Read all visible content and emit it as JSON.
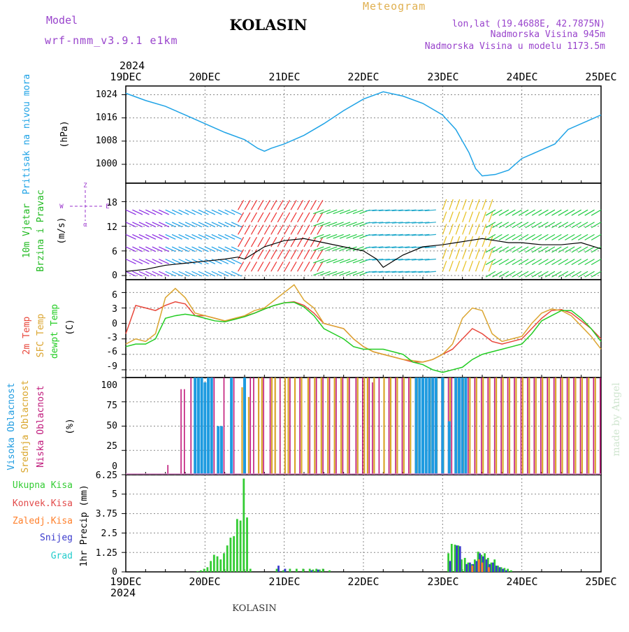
{
  "header": {
    "model_label": "Model",
    "model_name": "wrf-nmm_v3.9.1 e1km",
    "year_top": "2024",
    "title": "KOLASIN",
    "meteogram": "Meteogram",
    "lonlat": "lon,lat (19.4688E, 42.7875N)",
    "elevation": "Nadmorska Visina 945m",
    "model_elevation": "Nadmorska Visina u modelu 1173.5m"
  },
  "footer": {
    "year": "2024",
    "station": "KOLASIN",
    "credit": "made by Angel"
  },
  "colors": {
    "pressure": "#1fa3e6",
    "wind_label": "#22bb22",
    "temp2m": "#e8473b",
    "sfc": "#dba530",
    "dew": "#22cc22",
    "high_cloud": "#1e9be0",
    "mid_cloud": "#d9a52a",
    "low_cloud": "#c0197b",
    "precip_total": "#33cc33",
    "precip_conv": "#e24a4a",
    "precip_freeze": "#ff7f2a",
    "snow": "#3a3acc",
    "graupel": "#22cccc",
    "wind_legend": "#9933cc",
    "header": "#9944cc",
    "meteogram": "#e0b050"
  },
  "chart_data": [
    {
      "type": "line",
      "title": "",
      "ylabel_1": "Pritisak na nivou mora",
      "ylabel_2": "(hPa)",
      "x_ticks": [
        "19DEC",
        "20DEC",
        "21DEC",
        "22DEC",
        "23DEC",
        "24DEC",
        "25DEC"
      ],
      "y_ticks": [
        1000,
        1008,
        1016,
        1024
      ],
      "ylim": [
        993.5,
        1027
      ],
      "x": [
        0,
        6,
        12,
        18,
        24,
        30,
        36,
        40,
        42,
        44,
        48,
        54,
        60,
        66,
        72,
        78,
        84,
        90,
        96,
        100,
        104,
        106,
        108,
        112,
        116,
        120,
        124,
        126,
        130,
        134,
        140,
        144
      ],
      "series": [
        {
          "values": [
            1024.5,
            1022,
            1020,
            1017,
            1014,
            1011,
            1008.5,
            1005.5,
            1004.5,
            1005.5,
            1007,
            1010,
            1014,
            1018.5,
            1022.5,
            1025,
            1023.5,
            1021,
            1017,
            1012,
            1004,
            998.5,
            996,
            996.5,
            998,
            1002,
            1004,
            1005,
            1007,
            1012,
            1015,
            1017
          ]
        }
      ]
    },
    {
      "type": "line",
      "title": "",
      "ylabel_1": "10m Vjetar",
      "ylabel_2": "Brzina i Pravac",
      "ylabel_3": "(m/s)",
      "legend_compass": {
        "n": "Z",
        "w": "W",
        "e": "E",
        "s": "α"
      },
      "y_ticks": [
        0,
        6,
        12,
        18
      ],
      "ylim": [
        -1,
        22.5
      ],
      "x": [
        0,
        6,
        12,
        18,
        24,
        30,
        34,
        36,
        38,
        40,
        42,
        48,
        54,
        60,
        66,
        72,
        76,
        78,
        80,
        84,
        90,
        96,
        100,
        104,
        108,
        112,
        116,
        120,
        126,
        132,
        138,
        144
      ],
      "series": [
        {
          "name": "speed",
          "values": [
            1,
            1.5,
            2.5,
            3,
            3.5,
            4,
            4.5,
            4,
            5,
            6,
            7,
            8.5,
            9,
            8,
            7,
            6,
            4,
            2,
            3,
            5,
            7,
            7.5,
            8,
            8.5,
            9,
            8.5,
            8,
            8,
            7.5,
            7.5,
            8,
            6.5
          ]
        }
      ]
    },
    {
      "type": "line",
      "title": "",
      "ylabel_1": "2m Temp",
      "ylabel_2": "SFC Temp",
      "ylabel_3": "dewpt Temp",
      "ylabel_4": "(C)",
      "y_ticks": [
        -9,
        -6,
        -3,
        0,
        3,
        6
      ],
      "ylim": [
        -10.5,
        8.5
      ],
      "x": [
        0,
        3,
        6,
        9,
        12,
        15,
        18,
        21,
        24,
        27,
        30,
        33,
        36,
        39,
        42,
        45,
        48,
        51,
        54,
        57,
        60,
        63,
        66,
        69,
        72,
        75,
        78,
        81,
        84,
        87,
        90,
        93,
        96,
        99,
        102,
        105,
        108,
        111,
        114,
        117,
        120,
        123,
        126,
        129,
        132,
        135,
        138,
        141,
        144
      ],
      "series": [
        {
          "name": "2m Temp",
          "values": [
            -2,
            3.5,
            3,
            2.5,
            3.5,
            4.2,
            3.8,
            1.5,
            1.5,
            1,
            0.5,
            0.8,
            1.4,
            2,
            2.8,
            3.5,
            4,
            4.2,
            3.5,
            2,
            0,
            -0.5,
            -1,
            -3,
            -4.5,
            -5.5,
            -6,
            -6.5,
            -7,
            -7.5,
            -7.5,
            -7,
            -6,
            -5,
            -3,
            -1,
            -2,
            -3.5,
            -4,
            -3.5,
            -3,
            -1,
            1,
            2.5,
            2.7,
            2,
            0.5,
            -1,
            -3
          ]
        },
        {
          "name": "SFC Temp",
          "values": [
            -4,
            -3,
            -3.5,
            -2,
            5,
            6.8,
            5,
            2,
            1.5,
            1,
            0.5,
            1,
            1.5,
            2.5,
            3,
            4.5,
            6,
            7.5,
            4.5,
            3,
            0,
            -0.5,
            -1,
            -3,
            -4.5,
            -5.5,
            -6,
            -6.5,
            -7,
            -7.2,
            -7.5,
            -7,
            -6,
            -4,
            1,
            3,
            2.5,
            -2,
            -3.5,
            -3,
            -2.5,
            0,
            2,
            2.8,
            2.5,
            1.5,
            -0.5,
            -2.5,
            -5
          ]
        },
        {
          "name": "dewpt Temp",
          "values": [
            -4.5,
            -4,
            -4,
            -3,
            1,
            1.5,
            1.8,
            1.5,
            1,
            0.5,
            0.3,
            0.8,
            1.3,
            2,
            2.8,
            3.5,
            4,
            4.1,
            3.2,
            1.5,
            -1,
            -2,
            -3,
            -4.5,
            -5,
            -5,
            -5,
            -5.5,
            -6,
            -7.5,
            -8,
            -9,
            -9.5,
            -9,
            -8.5,
            -7,
            -6,
            -5.5,
            -5,
            -4.5,
            -4,
            -2,
            0.5,
            1.5,
            2.5,
            2.5,
            1,
            -1,
            -3.5
          ]
        }
      ]
    },
    {
      "type": "bar",
      "title": "",
      "ylabel_1": "Visoka Oblacnost",
      "ylabel_2": "Srednja Oblacnost",
      "ylabel_3": "Niska Oblacnost",
      "ylabel_4": "(%)",
      "y_ticks": [
        0,
        25,
        50,
        75,
        100
      ],
      "ylim": [
        0,
        100
      ],
      "series": [
        {
          "name": "Visoka Oblacnost",
          "x": [
            21,
            22,
            23,
            24,
            25,
            26,
            28,
            29,
            32,
            36,
            88,
            89,
            90,
            91,
            92,
            93,
            94,
            96,
            98,
            100,
            101,
            102,
            103
          ],
          "values": [
            100,
            100,
            100,
            95,
            100,
            100,
            50,
            50,
            100,
            100,
            100,
            100,
            100,
            100,
            100,
            100,
            100,
            100,
            55,
            100,
            100,
            100,
            100
          ]
        },
        {
          "name": "Srednja Oblacnost",
          "x": [
            35,
            37,
            40,
            41,
            44,
            45,
            48,
            49,
            51,
            53,
            55,
            57,
            59,
            61,
            63,
            65,
            67,
            70,
            72,
            73,
            75,
            78,
            80,
            82,
            84,
            86,
            88,
            92,
            94,
            96,
            98,
            100,
            102,
            104,
            106,
            108,
            110,
            112,
            114,
            116,
            118,
            120,
            122,
            124,
            126,
            128,
            130,
            132,
            134,
            136,
            138,
            140,
            142
          ],
          "values": [
            90,
            80,
            100,
            100,
            100,
            100,
            100,
            100,
            100,
            100,
            100,
            100,
            100,
            100,
            100,
            100,
            100,
            100,
            100,
            100,
            100,
            100,
            100,
            100,
            100,
            100,
            100,
            100,
            100,
            100,
            100,
            100,
            100,
            100,
            100,
            100,
            100,
            100,
            100,
            100,
            100,
            100,
            100,
            100,
            100,
            100,
            100,
            100,
            100,
            100,
            100,
            100,
            100
          ]
        },
        {
          "name": "Niska Oblacnost",
          "x": [
            13,
            17,
            18,
            20,
            27,
            30,
            33,
            36,
            38,
            39,
            42,
            44,
            47,
            50,
            53,
            56,
            58,
            60,
            62,
            64,
            66,
            68,
            70,
            72,
            74,
            75,
            77,
            80,
            82,
            84,
            86,
            88,
            90,
            92,
            94,
            96,
            98,
            99,
            102,
            104,
            106,
            108,
            110,
            112,
            114,
            116,
            118,
            120,
            122,
            124,
            126,
            128,
            130,
            132,
            134,
            136,
            138,
            140,
            142,
            144
          ],
          "values": [
            10,
            88,
            88,
            100,
            100,
            100,
            100,
            100,
            100,
            100,
            100,
            100,
            100,
            100,
            100,
            100,
            100,
            100,
            100,
            100,
            100,
            100,
            100,
            100,
            100,
            95,
            100,
            100,
            100,
            100,
            100,
            100,
            100,
            100,
            100,
            100,
            100,
            100,
            100,
            100,
            100,
            100,
            100,
            100,
            100,
            100,
            100,
            100,
            100,
            100,
            100,
            100,
            100,
            100,
            100,
            100,
            100,
            100,
            100,
            100
          ]
        }
      ]
    },
    {
      "type": "bar",
      "title": "",
      "legend": [
        "Ukupna Kisa",
        "Konvek.Kisa",
        "Zaledj.Kisa",
        "Snijeg",
        "Grad"
      ],
      "ylabel": "1hr Precip (mm)",
      "y_ticks": [
        "0",
        "1.25",
        "2.5",
        "3.75",
        "5",
        "6.25"
      ],
      "ylim": [
        0,
        6.25
      ],
      "x_ticks_bottom": [
        "19DEC",
        "20DEC",
        "21DEC",
        "22DEC",
        "23DEC",
        "24DEC",
        "25DEC"
      ],
      "series": [
        {
          "name": "Ukupna Kisa",
          "x": [
            22,
            23,
            24,
            25,
            26,
            27,
            28,
            29,
            30,
            31,
            32,
            33,
            34,
            35,
            36,
            37,
            38,
            46,
            48,
            50,
            52,
            54,
            56,
            57,
            58,
            59,
            60,
            62,
            98,
            99,
            100,
            101,
            102,
            103,
            104,
            105,
            106,
            107,
            108,
            109,
            110,
            111,
            112,
            113,
            114,
            115,
            116,
            117
          ],
          "values": [
            0.05,
            0.1,
            0.2,
            0.3,
            0.7,
            1.1,
            1,
            0.8,
            1.2,
            1.7,
            2.2,
            2.3,
            3.4,
            3.3,
            6,
            3.5,
            0.2,
            0.2,
            0.1,
            0.2,
            0.2,
            0.2,
            0.2,
            0.15,
            0.2,
            0.15,
            0.2,
            0.1,
            1.2,
            1.8,
            1.75,
            1.7,
            0.8,
            0.9,
            0.6,
            0.5,
            0.8,
            1.3,
            1.1,
            1.2,
            0.9,
            0.6,
            0.8,
            0.4,
            0.3,
            0.25,
            0.2,
            0.1
          ]
        },
        {
          "name": "Snijeg",
          "x": [
            46,
            48,
            56,
            58,
            98,
            100,
            101,
            103,
            104,
            105,
            106,
            107,
            108,
            109,
            110,
            111,
            112,
            113,
            114,
            115
          ],
          "values": [
            0.4,
            0.2,
            0.1,
            0.15,
            0.7,
            1.7,
            1.65,
            0.5,
            0.6,
            0.5,
            0.7,
            1.2,
            1,
            0.8,
            0.5,
            0.6,
            0.4,
            0.3,
            0.2,
            0.1
          ]
        },
        {
          "name": "Zaledj.Kisa",
          "x": [
            105,
            107,
            108,
            110
          ],
          "values": [
            0.4,
            0.8,
            0.6,
            0.3
          ]
        }
      ]
    }
  ]
}
